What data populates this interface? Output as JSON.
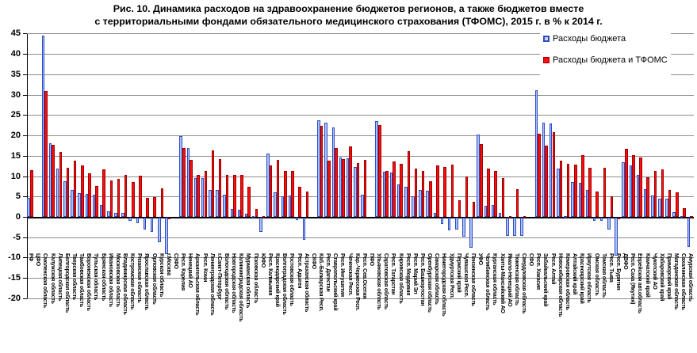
{
  "title": {
    "line1": "Рис. 10. Динамика расходов на здравоохранение бюджетов регионов, а также бюджетов вместе",
    "line2": "с территориальными фондами обязательного медицинского страхования (ТФОМС), 2015 г. в % к 2014 г."
  },
  "legend": {
    "budget_label": "Расходы бюджета",
    "budget_tfoms_label": "Расходы бюджета и ТФОМС"
  },
  "colors": {
    "budget_fill": "#aac2f2",
    "budget_border": "#2e4bc6",
    "tfoms_fill": "#fb0d0d",
    "tfoms_border": "#a00000",
    "gridline": "#8c8c8c"
  },
  "chart_data": {
    "type": "bar",
    "title": "Рис. 10. Динамика расходов на здравоохранение бюджетов регионов, а также бюджетов вместе с территориальными фондами обязательного медицинского страхования (ТФОМС), 2015 г. в % к 2014 г.",
    "ylabel": "",
    "xlabel": "",
    "ylim": [
      -20,
      45
    ],
    "ytick_step": 5,
    "grid": true,
    "legend_position": "top-right",
    "categories": [
      "РФ",
      "ЦФО",
      "Смоленская область",
      "Калужская область",
      "Липецкая область",
      "Белгородская область",
      "Тверская область",
      "Тамбовская область",
      "Воронежская область",
      "Тульская область",
      "Брянская область",
      "Ивановская область",
      "Московская область",
      "Владимирская область",
      "Костромская область",
      "Рязанская область",
      "Ярославская область",
      "Орловская область",
      "Курская область",
      "г.Москва",
      "СЗФО",
      "Респ. Карелия",
      "Ненецкий АО",
      "Архангельская область",
      "Респ. Коми",
      "Ленинградская область",
      "г.Санкт-Петербург",
      "Вологодская область",
      "Новгородская область",
      "Калининградская область",
      "Мурманская область",
      "Псковская область",
      "ЮФО",
      "Респ. Калмыкия",
      "Краснодарский край",
      "Волгоградская область",
      "Ростовская область",
      "Респ. Адыгея",
      "Астраханская область",
      "СКФО",
      "Каб.-Балкарская Респ.",
      "Респ. Дагестан",
      "Ставропольский край",
      "Респ. Ингушетия",
      "Чеченская Респ.",
      "Кар.-Черкесская Респ.",
      "Респ. Сев.Осетия",
      "ПФО",
      "Ульяновская область",
      "Саратовская область",
      "Респ. Татарстан",
      "Кировская область",
      "Респ. Мордовия",
      "Респ. Марий Эл",
      "Респ. Башкортостан",
      "Оренбургская область",
      "Самарская область",
      "Нижегородская область",
      "Удмуртская Респ.",
      "Пермский край",
      "Чувашская Респ.",
      "Пензенская область",
      "УФО",
      "Челябинская область",
      "Курганская область",
      "Ханты-Мансийский АО",
      "Ямало-Ненецкий АО",
      "Тюменская область",
      "Свердловская область",
      "СФО",
      "Респ. Хакасия",
      "Забайкальский край",
      "Респ. Алтай",
      "Новосибирская область",
      "Кемеровская область",
      "Алтайский край",
      "Красноярский край",
      "Иркутская область",
      "Омская область",
      "Томская область",
      "Респ. Тыва",
      "Респ. Бурятия",
      "ДВФО",
      "Респ. Саха (Якутия)",
      "Еврейская авт.область",
      "Камчатский край",
      "Чукотский АО",
      "Хабаровский край",
      "Приморский край",
      "Магаданская область",
      "Сахалинская область",
      "Амурская область"
    ],
    "series": [
      {
        "name": "Расходы бюджета",
        "values": [
          4.8,
          0,
          44.6,
          18.2,
          12.0,
          8.8,
          6.8,
          5.9,
          5.7,
          5.5,
          3.1,
          1.4,
          1.1,
          1.0,
          -0.9,
          -1.4,
          -3.0,
          -3.6,
          -6.2,
          -9.1,
          0,
          20.0,
          17.0,
          9.7,
          9.7,
          6.7,
          6.7,
          5.6,
          2.1,
          1.9,
          0.9,
          0.2,
          -3.5,
          15.7,
          6.2,
          5.1,
          5.3,
          -0.7,
          -5.6,
          0,
          23.8,
          23.2,
          22.1,
          14.6,
          14.5,
          12.4,
          5.5,
          0,
          23.6,
          11.1,
          11.0,
          8.0,
          7.4,
          5.2,
          6.7,
          6.5,
          1.0,
          -1.6,
          -3.3,
          -3.0,
          -4.8,
          -7.4,
          20.3,
          2.8,
          3.0,
          1.0,
          -4.6,
          -4.6,
          -4.5,
          0,
          31.2,
          23.2,
          23.1,
          11.9,
          0.3,
          8.7,
          8.5,
          6.7,
          -0.9,
          -0.9,
          -3.0,
          -9.5,
          13.5,
          12.7,
          10.3,
          6.9,
          5.4,
          4.5,
          4.5,
          1.2,
          0.3,
          -7.2
        ]
      },
      {
        "name": "Расходы бюджета и ТФОМС",
        "values": [
          11.5,
          0,
          31.0,
          17.7,
          16.1,
          12.2,
          13.9,
          12.8,
          10.7,
          7.7,
          11.7,
          9.0,
          9.4,
          10.3,
          8.7,
          10.2,
          4.7,
          4.9,
          7.1,
          -0.5,
          0,
          17.1,
          14.1,
          10.4,
          11.4,
          16.4,
          14.3,
          10.3,
          10.4,
          10.4,
          7.4,
          2.0,
          0.2,
          12.7,
          14.0,
          11.3,
          11.4,
          7.5,
          6.3,
          0,
          22.4,
          13.9,
          17.1,
          14.3,
          17.3,
          13.4,
          14.1,
          0,
          22.6,
          11.4,
          13.7,
          13.2,
          16.3,
          12.0,
          11.4,
          8.8,
          12.8,
          12.4,
          13.0,
          4.1,
          10.1,
          3.8,
          17.9,
          12.0,
          11.3,
          9.7,
          0.3,
          6.9,
          0.3,
          0,
          20.5,
          17.6,
          20.8,
          13.9,
          13.2,
          12.9,
          15.3,
          12.2,
          6.4,
          12.1,
          5.1,
          -0.5,
          16.9,
          15.3,
          14.6,
          9.8,
          11.3,
          11.8,
          6.7,
          6.2,
          2.3,
          0.3
        ]
      }
    ]
  }
}
